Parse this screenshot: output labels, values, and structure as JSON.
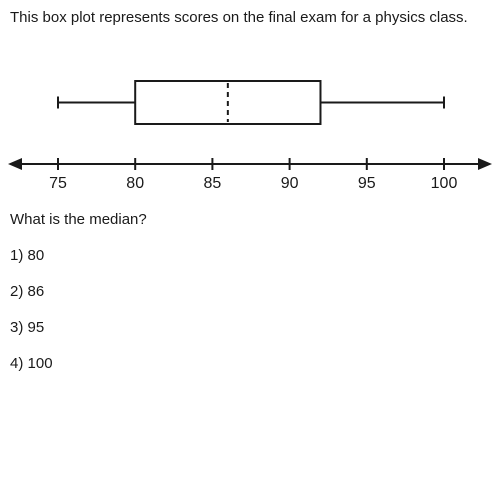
{
  "question": {
    "prompt": "This box plot represents scores on the final exam for a physics class.",
    "ask": "What is the median?",
    "choices": [
      "1) 80",
      "2) 86",
      "3) 95",
      "4) 100"
    ]
  },
  "chart_data": {
    "type": "box",
    "title": "",
    "xlabel": "",
    "ylabel": "",
    "min": 75,
    "q1": 80,
    "median": 86,
    "q3": 92,
    "max": 100,
    "xlim": [
      75,
      100
    ],
    "ticks": [
      75,
      80,
      85,
      90,
      95,
      100
    ],
    "tick_labels": [
      "75",
      "80",
      "85",
      "90",
      "95",
      "100"
    ],
    "grid": false,
    "median_style": "dashed"
  }
}
